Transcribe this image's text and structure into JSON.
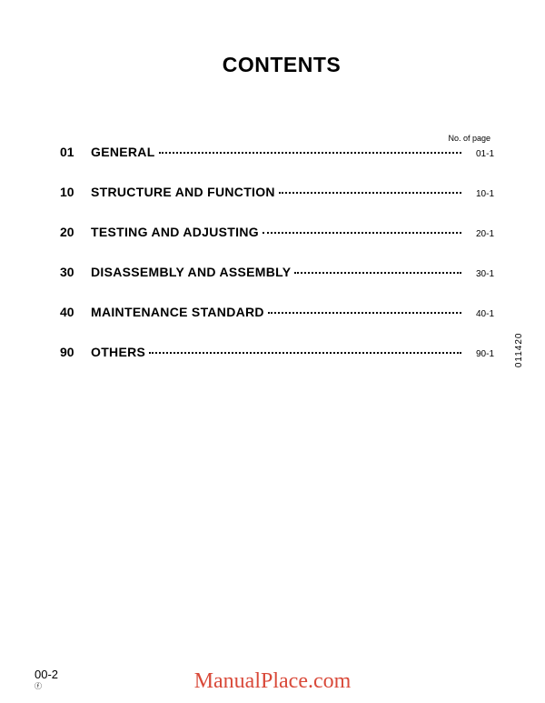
{
  "title": "CONTENTS",
  "columnHeader": "No. of page",
  "toc": [
    {
      "num": "01",
      "title": "GENERAL",
      "page": "01-1"
    },
    {
      "num": "10",
      "title": "STRUCTURE AND FUNCTION",
      "page": "10-1"
    },
    {
      "num": "20",
      "title": "TESTING AND ADJUSTING",
      "page": "20-1"
    },
    {
      "num": "30",
      "title": "DISASSEMBLY AND ASSEMBLY",
      "page": "30-1"
    },
    {
      "num": "40",
      "title": "MAINTENANCE STANDARD",
      "page": "40-1"
    },
    {
      "num": "90",
      "title": "OTHERS",
      "page": "90-1"
    }
  ],
  "sideCode": "011420",
  "footer": {
    "pageNumber": "00-2",
    "sub": "ⓕ"
  },
  "watermark": "ManualPlace.com",
  "colors": {
    "text": "#000000",
    "background": "#ffffff",
    "watermark": "#d94a3a"
  }
}
